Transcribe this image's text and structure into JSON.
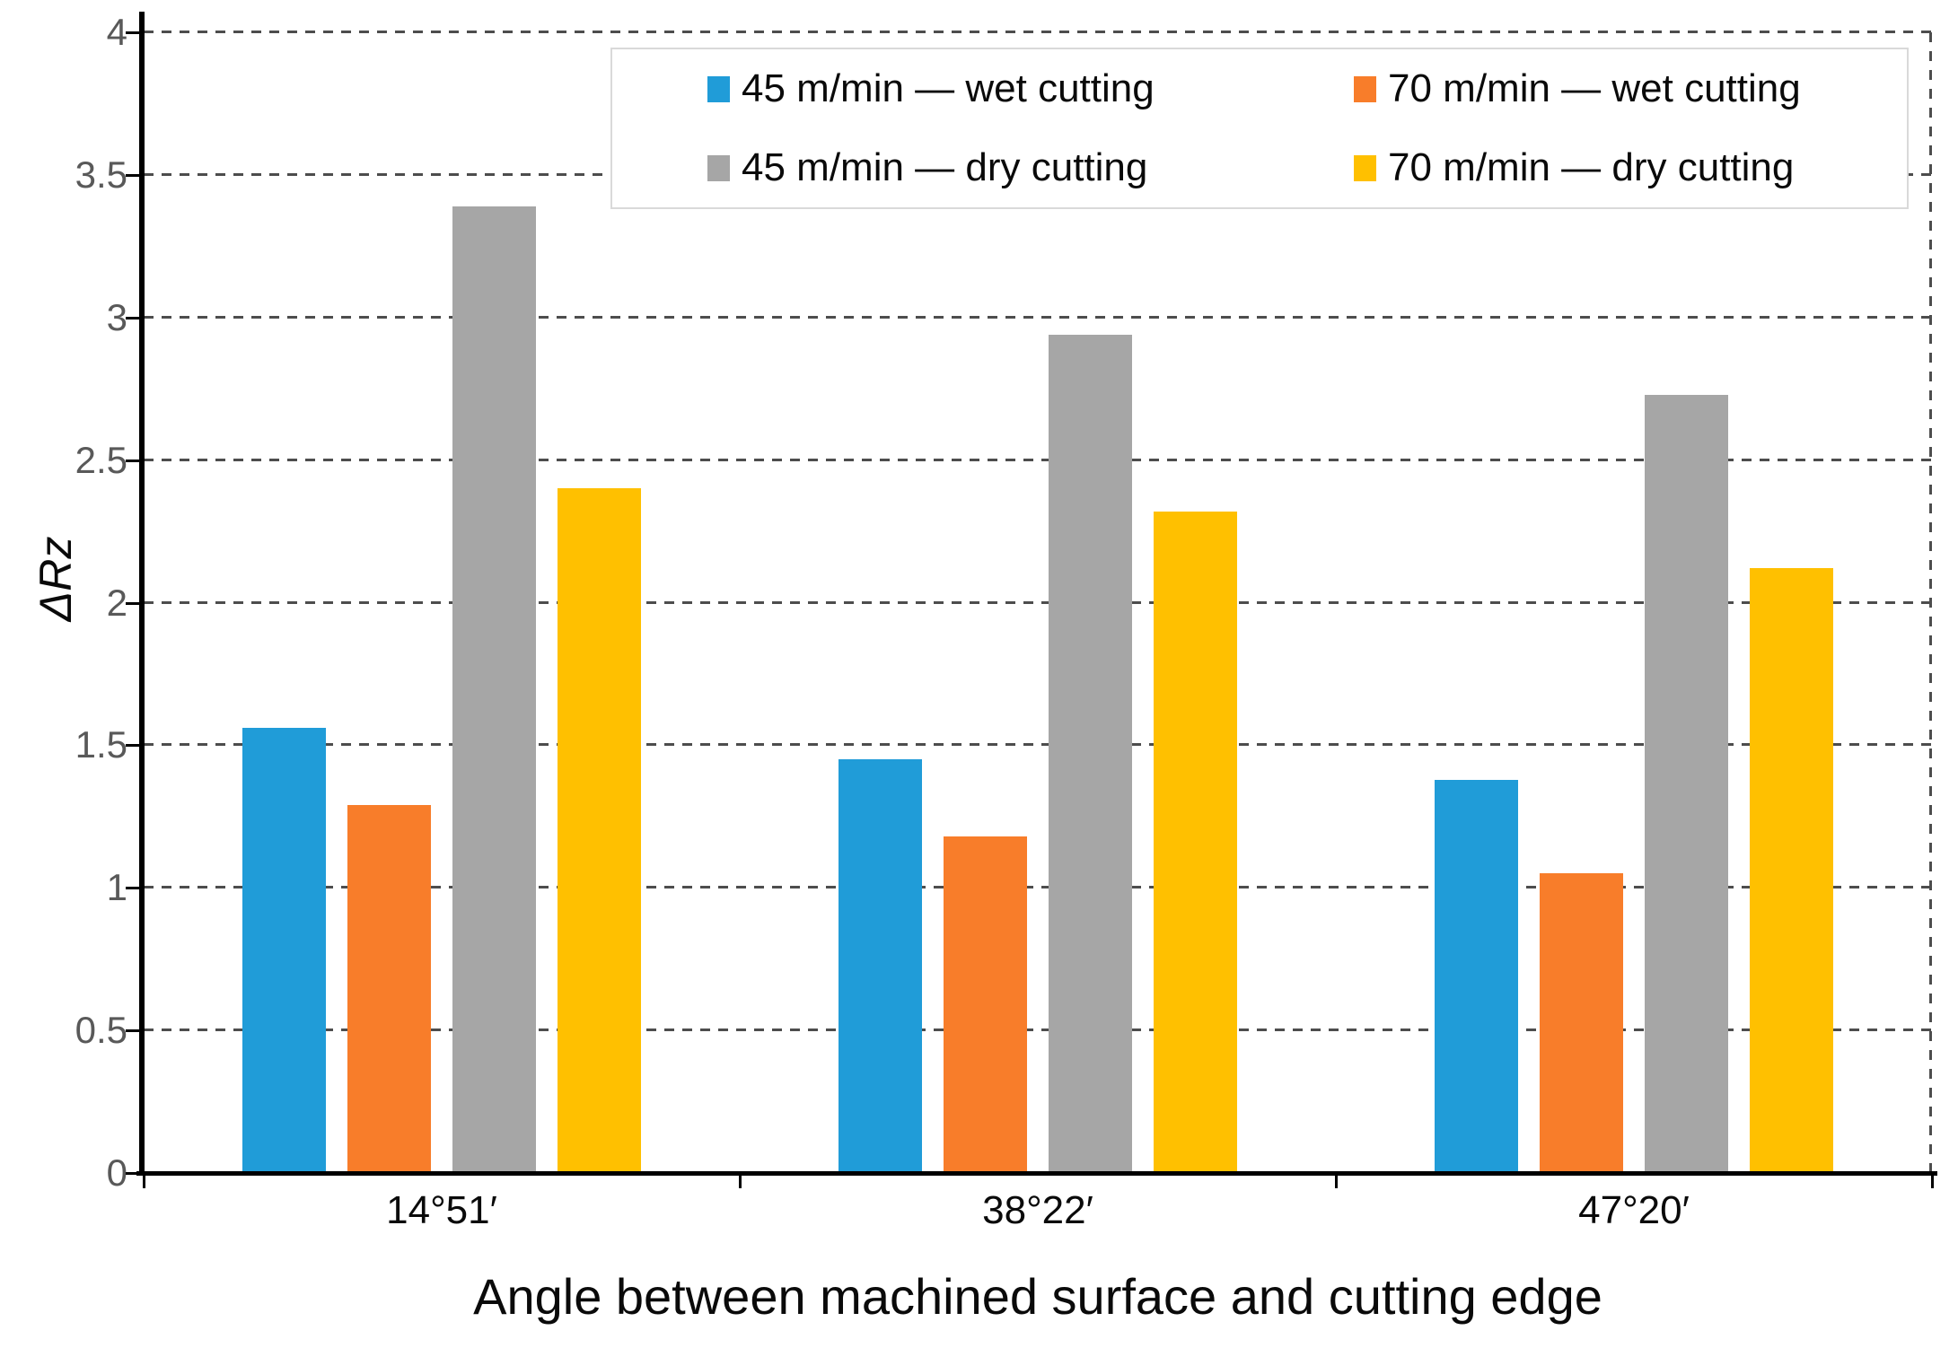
{
  "chart_data": {
    "type": "bar",
    "title": "",
    "xlabel": "Angle between machined surface and cutting edge",
    "ylabel": "ΔRz",
    "ylim": [
      0,
      4
    ],
    "yticks": [
      0,
      0.5,
      1,
      1.5,
      2,
      2.5,
      3,
      3.5,
      4
    ],
    "ytick_labels": [
      "0",
      "0.5",
      "1",
      "1.5",
      "2",
      "2.5",
      "3",
      "3.5",
      "4"
    ],
    "grid": "horizontal dashed",
    "legend_position": "top",
    "categories": [
      "14°51′",
      "38°22′",
      "47°20′"
    ],
    "series": [
      {
        "name": "45 m/min — wet cutting",
        "color": "#209CD8",
        "values": [
          1.56,
          1.45,
          1.38
        ]
      },
      {
        "name": "70 m/min — wet cutting",
        "color": "#F87D2A",
        "values": [
          1.29,
          1.18,
          1.05
        ]
      },
      {
        "name": "45 m/min — dry cutting",
        "color": "#A6A6A6",
        "values": [
          3.39,
          2.94,
          2.73
        ]
      },
      {
        "name": "70 m/min — dry cutting",
        "color": "#FFC000",
        "values": [
          2.4,
          2.32,
          2.12
        ]
      }
    ]
  }
}
